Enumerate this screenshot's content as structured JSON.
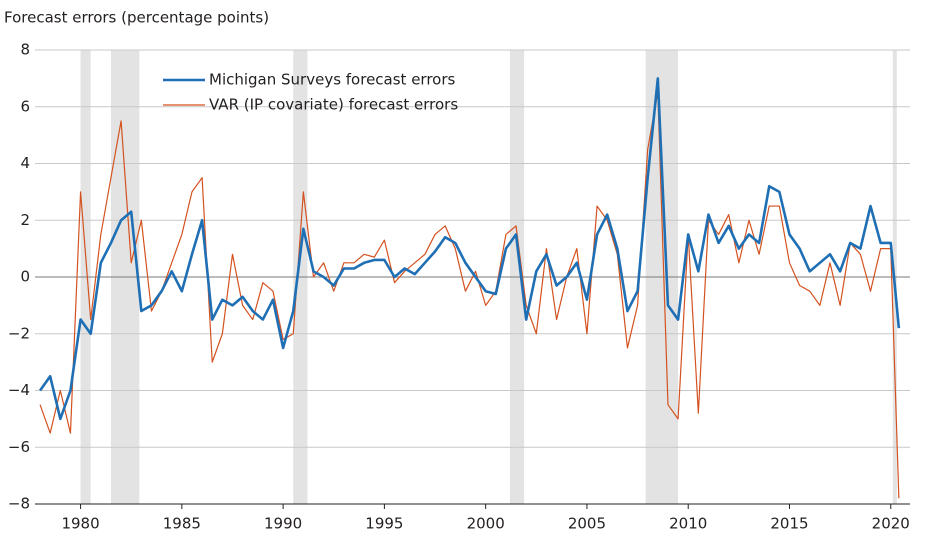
{
  "chart_data": {
    "type": "line",
    "title": "Forecast errors (percentage points)",
    "x": [
      1978.0,
      1978.5,
      1979.0,
      1979.5,
      1980.0,
      1980.5,
      1981.0,
      1981.5,
      1982.0,
      1982.5,
      1983.0,
      1983.5,
      1984.0,
      1984.5,
      1985.0,
      1985.5,
      1986.0,
      1986.5,
      1987.0,
      1987.5,
      1988.0,
      1988.5,
      1989.0,
      1989.5,
      1990.0,
      1990.5,
      1991.0,
      1991.5,
      1992.0,
      1992.5,
      1993.0,
      1993.5,
      1994.0,
      1994.5,
      1995.0,
      1995.5,
      1996.0,
      1996.5,
      1997.0,
      1997.5,
      1998.0,
      1998.5,
      1999.0,
      1999.5,
      2000.0,
      2000.5,
      2001.0,
      2001.5,
      2002.0,
      2002.5,
      2003.0,
      2003.5,
      2004.0,
      2004.5,
      2005.0,
      2005.5,
      2006.0,
      2006.5,
      2007.0,
      2007.5,
      2008.0,
      2008.5,
      2009.0,
      2009.5,
      2010.0,
      2010.5,
      2011.0,
      2011.5,
      2012.0,
      2012.5,
      2013.0,
      2013.5,
      2014.0,
      2014.5,
      2015.0,
      2015.5,
      2016.0,
      2016.5,
      2017.0,
      2017.5,
      2018.0,
      2018.5,
      2019.0,
      2019.5,
      2020.0,
      2020.4
    ],
    "series": [
      {
        "name": "Michigan Surveys forecast errors",
        "color": "#1f6fb5",
        "width": 2.6,
        "values": [
          -4.0,
          -3.5,
          -5.0,
          -4.0,
          -1.5,
          -2.0,
          0.5,
          1.2,
          2.0,
          2.3,
          -1.2,
          -1.0,
          -0.5,
          0.2,
          -0.5,
          0.8,
          2.0,
          -1.5,
          -0.8,
          -1.0,
          -0.7,
          -1.2,
          -1.5,
          -0.8,
          -2.5,
          -1.2,
          1.7,
          0.2,
          0.0,
          -0.3,
          0.3,
          0.3,
          0.5,
          0.6,
          0.6,
          0.0,
          0.3,
          0.1,
          0.5,
          0.9,
          1.4,
          1.2,
          0.5,
          0.0,
          -0.5,
          -0.6,
          1.0,
          1.5,
          -1.5,
          0.2,
          0.8,
          -0.3,
          0.0,
          0.5,
          -0.8,
          1.5,
          2.2,
          1.0,
          -1.2,
          -0.5,
          3.5,
          7.0,
          -1.0,
          -1.5,
          1.5,
          0.2,
          2.2,
          1.2,
          1.8,
          1.0,
          1.5,
          1.2,
          3.2,
          3.0,
          1.5,
          1.0,
          0.2,
          0.5,
          0.8,
          0.2,
          1.2,
          1.0,
          2.5,
          1.2,
          1.2,
          -1.8
        ]
      },
      {
        "name": "VAR (IP covariate) forecast errors",
        "color": "#d4521f",
        "width": 1.2,
        "values": [
          -4.5,
          -5.5,
          -4.0,
          -5.5,
          3.0,
          -1.5,
          1.5,
          3.5,
          5.5,
          0.5,
          2.0,
          -1.2,
          -0.5,
          0.5,
          1.5,
          3.0,
          3.5,
          -3.0,
          -2.0,
          0.8,
          -1.0,
          -1.5,
          -0.2,
          -0.5,
          -2.2,
          -2.0,
          3.0,
          0.0,
          0.5,
          -0.5,
          0.5,
          0.5,
          0.8,
          0.7,
          1.3,
          -0.2,
          0.2,
          0.5,
          0.8,
          1.5,
          1.8,
          1.0,
          -0.5,
          0.2,
          -1.0,
          -0.5,
          1.5,
          1.8,
          -1.0,
          -2.0,
          1.0,
          -1.5,
          0.0,
          1.0,
          -2.0,
          2.5,
          2.0,
          0.8,
          -2.5,
          -1.0,
          4.5,
          6.5,
          -4.5,
          -5.0,
          1.5,
          -4.8,
          2.0,
          1.5,
          2.2,
          0.5,
          2.0,
          0.8,
          2.5,
          2.5,
          0.5,
          -0.3,
          -0.5,
          -1.0,
          0.5,
          -1.0,
          1.2,
          0.8,
          -0.5,
          1.0,
          1.0,
          -7.8
        ]
      }
    ],
    "shaded_periods": [
      [
        1980.0,
        1980.5
      ],
      [
        1981.5,
        1982.9
      ],
      [
        1990.5,
        1991.2
      ],
      [
        2001.2,
        2001.9
      ],
      [
        2007.9,
        2009.5
      ],
      [
        2020.1,
        2020.3
      ]
    ],
    "xlim": [
      1977.75,
      2020.95
    ],
    "xticks": [
      1980,
      1985,
      1990,
      1995,
      2000,
      2005,
      2010,
      2015,
      2020
    ],
    "ylim": [
      -8,
      8
    ],
    "yticks": [
      {
        "value": -8,
        "label": "−8"
      },
      {
        "value": -6,
        "label": "−6"
      },
      {
        "value": -4,
        "label": "−4"
      },
      {
        "value": -2,
        "label": "−2"
      },
      0,
      2,
      4,
      6,
      8
    ],
    "grid": true
  }
}
